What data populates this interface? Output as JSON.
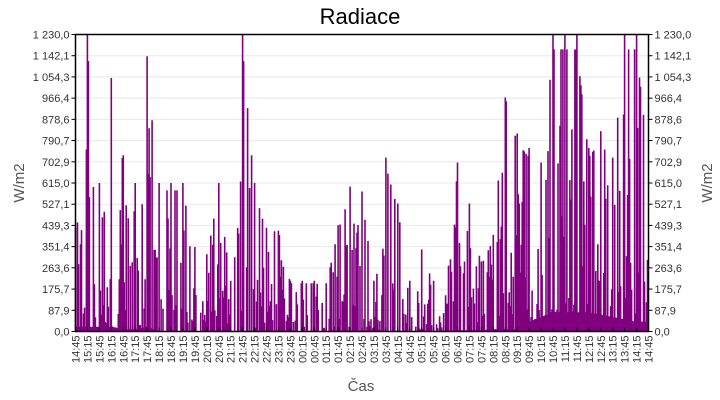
{
  "chart_data": {
    "type": "bar",
    "title": "Radiace",
    "xlabel": "Čas",
    "ylabel": "W/m2",
    "ylabel_right": "W/m2",
    "ylim": [
      0,
      1230
    ],
    "grid": true,
    "legend": null,
    "series_color": "#800080",
    "y_ticks": [
      "0,0",
      "87,9",
      "175,7",
      "263,6",
      "351,4",
      "439,3",
      "527,1",
      "615,0",
      "702,9",
      "790,7",
      "878,6",
      "966,4",
      "1 054,3",
      "1 142,1",
      "1 230,0"
    ],
    "x_ticks": [
      "14:45",
      "15:15",
      "15:45",
      "16:15",
      "16:45",
      "17:15",
      "17:45",
      "18:15",
      "18:45",
      "19:15",
      "19:45",
      "20:15",
      "20:45",
      "21:15",
      "21:45",
      "22:15",
      "22:45",
      "23:15",
      "23:45",
      "00:15",
      "00:45",
      "01:15",
      "01:45",
      "02:15",
      "02:45",
      "03:15",
      "03:45",
      "04:15",
      "04:45",
      "05:15",
      "05:45",
      "06:15",
      "06:45",
      "07:15",
      "07:45",
      "08:15",
      "08:45",
      "09:15",
      "09:45",
      "10:15",
      "10:45",
      "11:15",
      "11:45",
      "12:15",
      "12:45",
      "13:15",
      "13:45",
      "14:15",
      "14:45"
    ],
    "series": [
      {
        "name": "Radiace",
        "description": "Highly variable solar radiation readings; spikes to 1230 near 15:15, 21:45 and repeatedly between 10:30 and 14:30; near-zero overnight with isolated spikes up to ~700; dense 150-700 band from 08:30 to 14:45",
        "approx_envelope": [
          {
            "x": "14:45",
            "min": 20,
            "max": 430
          },
          {
            "x": "15:15",
            "min": 20,
            "max": 1230
          },
          {
            "x": "15:45",
            "min": 20,
            "max": 615
          },
          {
            "x": "16:15",
            "min": 20,
            "max": 1050
          },
          {
            "x": "16:45",
            "min": 10,
            "max": 730
          },
          {
            "x": "17:15",
            "min": 10,
            "max": 615
          },
          {
            "x": "17:45",
            "min": 20,
            "max": 1140
          },
          {
            "x": "18:15",
            "min": 0,
            "max": 615
          },
          {
            "x": "18:45",
            "min": 0,
            "max": 615
          },
          {
            "x": "19:15",
            "min": 0,
            "max": 615
          },
          {
            "x": "19:45",
            "min": 0,
            "max": 350
          },
          {
            "x": "20:15",
            "min": 0,
            "max": 320
          },
          {
            "x": "20:45",
            "min": 0,
            "max": 615
          },
          {
            "x": "21:15",
            "min": 0,
            "max": 210
          },
          {
            "x": "21:45",
            "min": 0,
            "max": 1230
          },
          {
            "x": "22:15",
            "min": 0,
            "max": 615
          },
          {
            "x": "22:45",
            "min": 0,
            "max": 430
          },
          {
            "x": "23:15",
            "min": 0,
            "max": 440
          },
          {
            "x": "23:45",
            "min": 0,
            "max": 210
          },
          {
            "x": "00:15",
            "min": 0,
            "max": 210
          },
          {
            "x": "00:45",
            "min": 0,
            "max": 210
          },
          {
            "x": "01:15",
            "min": 0,
            "max": 200
          },
          {
            "x": "01:45",
            "min": 0,
            "max": 440
          },
          {
            "x": "02:15",
            "min": 0,
            "max": 600
          },
          {
            "x": "02:45",
            "min": 0,
            "max": 580
          },
          {
            "x": "03:15",
            "min": 0,
            "max": 210
          },
          {
            "x": "03:45",
            "min": 0,
            "max": 720
          },
          {
            "x": "04:15",
            "min": 0,
            "max": 530
          },
          {
            "x": "04:45",
            "min": 0,
            "max": 210
          },
          {
            "x": "05:15",
            "min": 0,
            "max": 340
          },
          {
            "x": "05:45",
            "min": 0,
            "max": 210
          },
          {
            "x": "06:15",
            "min": 0,
            "max": 150
          },
          {
            "x": "06:45",
            "min": 5,
            "max": 700
          },
          {
            "x": "07:15",
            "min": 5,
            "max": 530
          },
          {
            "x": "07:45",
            "min": 5,
            "max": 290
          },
          {
            "x": "08:15",
            "min": 10,
            "max": 400
          },
          {
            "x": "08:45",
            "min": 10,
            "max": 1020
          },
          {
            "x": "09:15",
            "min": 10,
            "max": 820
          },
          {
            "x": "09:45",
            "min": 40,
            "max": 760
          },
          {
            "x": "10:15",
            "min": 60,
            "max": 700
          },
          {
            "x": "10:45",
            "min": 80,
            "max": 1230
          },
          {
            "x": "11:15",
            "min": 80,
            "max": 1230
          },
          {
            "x": "11:45",
            "min": 80,
            "max": 1230
          },
          {
            "x": "12:15",
            "min": 80,
            "max": 760
          },
          {
            "x": "12:45",
            "min": 70,
            "max": 830
          },
          {
            "x": "13:15",
            "min": 60,
            "max": 720
          },
          {
            "x": "13:45",
            "min": 50,
            "max": 1230
          },
          {
            "x": "14:15",
            "min": 40,
            "max": 1230
          },
          {
            "x": "14:45",
            "min": 40,
            "max": 740
          }
        ]
      }
    ]
  }
}
